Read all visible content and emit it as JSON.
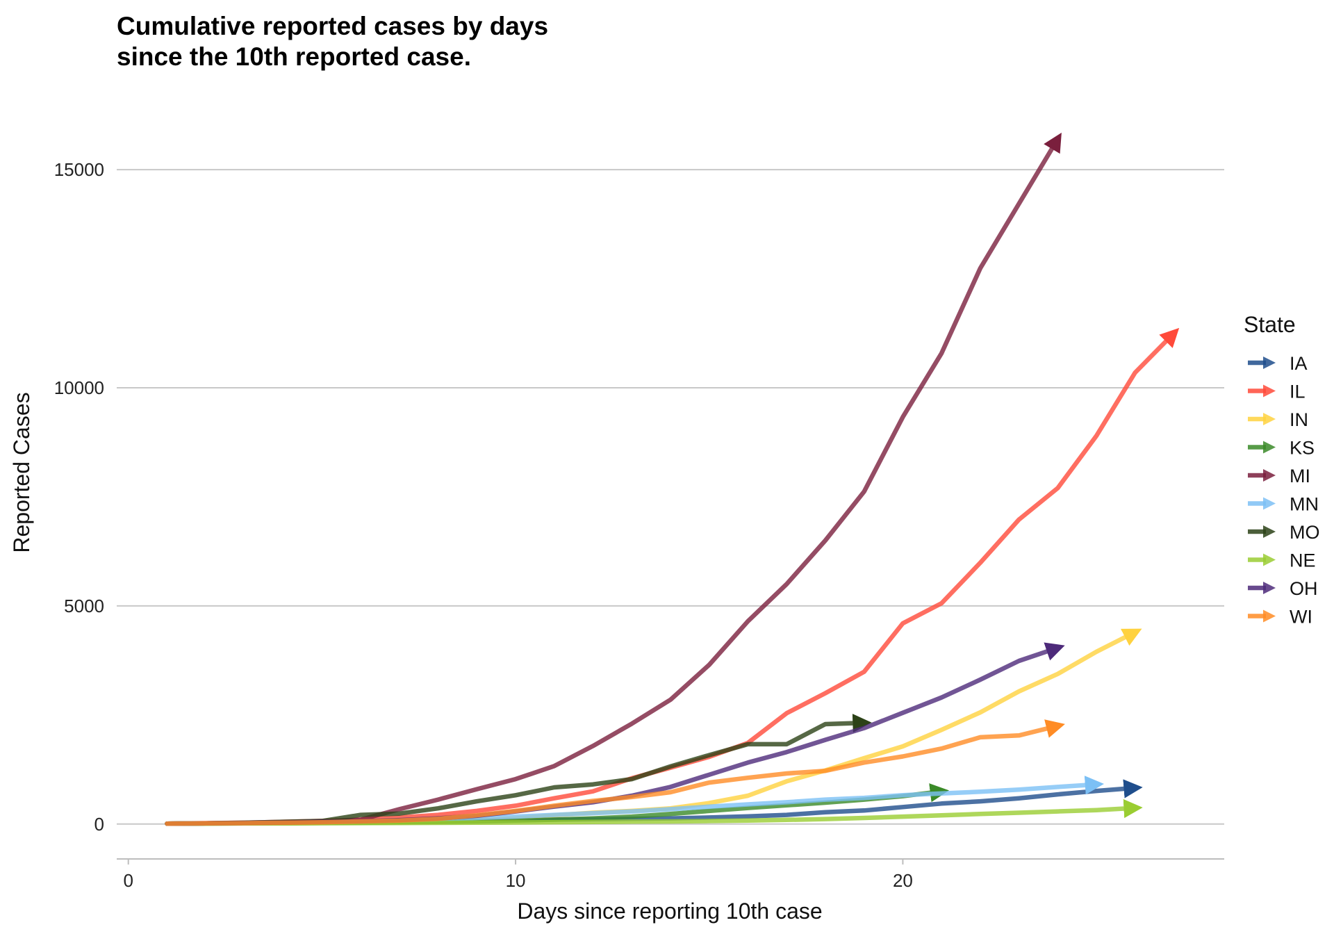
{
  "chart_data": {
    "type": "line",
    "title_lines": [
      "Cumulative reported cases by days",
      "since the 10th reported case."
    ],
    "xlabel": "Days since reporting 10th case",
    "ylabel": "Reported Cases",
    "xlim": [
      -0.3,
      28.3
    ],
    "ylim": [
      -800,
      16500
    ],
    "xticks": [
      0,
      10,
      20
    ],
    "yticks": [
      0,
      5000,
      10000,
      15000
    ],
    "grid": "horizontal",
    "legend_title": "State",
    "legend_position": "right",
    "series": [
      {
        "name": "IA",
        "color": "#1f4e8c",
        "points": [
          [
            1,
            10
          ],
          [
            2,
            15
          ],
          [
            3,
            20
          ],
          [
            4,
            25
          ],
          [
            5,
            30
          ],
          [
            6,
            38
          ],
          [
            7,
            45
          ],
          [
            8,
            55
          ],
          [
            9,
            70
          ],
          [
            10,
            85
          ],
          [
            11,
            100
          ],
          [
            12,
            110
          ],
          [
            13,
            120
          ],
          [
            14,
            130
          ],
          [
            15,
            150
          ],
          [
            16,
            175
          ],
          [
            17,
            210
          ],
          [
            18,
            270
          ],
          [
            19,
            310
          ],
          [
            20,
            390
          ],
          [
            21,
            470
          ],
          [
            22,
            520
          ],
          [
            23,
            590
          ],
          [
            24,
            680
          ],
          [
            25,
            760
          ],
          [
            26,
            830
          ]
        ]
      },
      {
        "name": "IL",
        "color": "#ff4a3a",
        "points": [
          [
            1,
            10
          ],
          [
            2,
            20
          ],
          [
            3,
            30
          ],
          [
            4,
            50
          ],
          [
            5,
            70
          ],
          [
            6,
            100
          ],
          [
            7,
            150
          ],
          [
            8,
            210
          ],
          [
            9,
            300
          ],
          [
            10,
            420
          ],
          [
            11,
            590
          ],
          [
            12,
            750
          ],
          [
            13,
            1050
          ],
          [
            14,
            1290
          ],
          [
            15,
            1540
          ],
          [
            16,
            1860
          ],
          [
            17,
            2540
          ],
          [
            18,
            3000
          ],
          [
            19,
            3490
          ],
          [
            20,
            4600
          ],
          [
            21,
            5060
          ],
          [
            22,
            5990
          ],
          [
            23,
            6980
          ],
          [
            24,
            7700
          ],
          [
            25,
            8900
          ],
          [
            26,
            10350
          ],
          [
            27,
            11250
          ]
        ]
      },
      {
        "name": "IN",
        "color": "#ffd23f",
        "points": [
          [
            1,
            10
          ],
          [
            2,
            12
          ],
          [
            3,
            15
          ],
          [
            4,
            18
          ],
          [
            5,
            25
          ],
          [
            6,
            30
          ],
          [
            7,
            40
          ],
          [
            8,
            55
          ],
          [
            9,
            80
          ],
          [
            10,
            130
          ],
          [
            11,
            200
          ],
          [
            12,
            260
          ],
          [
            13,
            300
          ],
          [
            14,
            360
          ],
          [
            15,
            480
          ],
          [
            16,
            650
          ],
          [
            17,
            980
          ],
          [
            18,
            1230
          ],
          [
            19,
            1510
          ],
          [
            20,
            1780
          ],
          [
            21,
            2160
          ],
          [
            22,
            2560
          ],
          [
            23,
            3040
          ],
          [
            24,
            3440
          ],
          [
            25,
            3950
          ],
          [
            26,
            4400
          ]
        ]
      },
      {
        "name": "KS",
        "color": "#3a8a28",
        "points": [
          [
            1,
            10
          ],
          [
            2,
            12
          ],
          [
            3,
            15
          ],
          [
            4,
            20
          ],
          [
            5,
            25
          ],
          [
            6,
            30
          ],
          [
            7,
            40
          ],
          [
            8,
            50
          ],
          [
            9,
            65
          ],
          [
            10,
            80
          ],
          [
            11,
            100
          ],
          [
            12,
            130
          ],
          [
            13,
            170
          ],
          [
            14,
            230
          ],
          [
            15,
            300
          ],
          [
            16,
            370
          ],
          [
            17,
            430
          ],
          [
            18,
            490
          ],
          [
            19,
            560
          ],
          [
            20,
            640
          ],
          [
            21,
            750
          ]
        ]
      },
      {
        "name": "MI",
        "color": "#7a1f3d",
        "points": [
          [
            1,
            10
          ],
          [
            2,
            15
          ],
          [
            3,
            25
          ],
          [
            4,
            40
          ],
          [
            5,
            60
          ],
          [
            6,
            100
          ],
          [
            7,
            340
          ],
          [
            8,
            560
          ],
          [
            9,
            800
          ],
          [
            10,
            1030
          ],
          [
            11,
            1330
          ],
          [
            12,
            1790
          ],
          [
            13,
            2300
          ],
          [
            14,
            2850
          ],
          [
            15,
            3650
          ],
          [
            16,
            4650
          ],
          [
            17,
            5500
          ],
          [
            18,
            6500
          ],
          [
            19,
            7620
          ],
          [
            20,
            9330
          ],
          [
            21,
            10790
          ],
          [
            22,
            12740
          ],
          [
            23,
            14220
          ],
          [
            24,
            15700
          ]
        ]
      },
      {
        "name": "MN",
        "color": "#7cc0f5",
        "points": [
          [
            1,
            10
          ],
          [
            2,
            15
          ],
          [
            3,
            20
          ],
          [
            4,
            30
          ],
          [
            5,
            40
          ],
          [
            6,
            55
          ],
          [
            7,
            80
          ],
          [
            8,
            110
          ],
          [
            9,
            140
          ],
          [
            10,
            170
          ],
          [
            11,
            210
          ],
          [
            12,
            250
          ],
          [
            13,
            290
          ],
          [
            14,
            340
          ],
          [
            15,
            400
          ],
          [
            16,
            450
          ],
          [
            17,
            500
          ],
          [
            18,
            560
          ],
          [
            19,
            600
          ],
          [
            20,
            660
          ],
          [
            21,
            700
          ],
          [
            22,
            740
          ],
          [
            23,
            790
          ],
          [
            24,
            850
          ],
          [
            25,
            910
          ]
        ]
      },
      {
        "name": "MO",
        "color": "#2c4217",
        "points": [
          [
            1,
            10
          ],
          [
            2,
            15
          ],
          [
            3,
            30
          ],
          [
            4,
            50
          ],
          [
            5,
            70
          ],
          [
            6,
            210
          ],
          [
            7,
            240
          ],
          [
            8,
            360
          ],
          [
            9,
            520
          ],
          [
            10,
            660
          ],
          [
            11,
            840
          ],
          [
            12,
            910
          ],
          [
            13,
            1030
          ],
          [
            14,
            1320
          ],
          [
            15,
            1580
          ],
          [
            16,
            1830
          ],
          [
            17,
            1830
          ],
          [
            18,
            2290
          ],
          [
            19,
            2320
          ]
        ]
      },
      {
        "name": "NE",
        "color": "#9acd32",
        "points": [
          [
            1,
            10
          ],
          [
            2,
            12
          ],
          [
            3,
            15
          ],
          [
            4,
            18
          ],
          [
            5,
            20
          ],
          [
            6,
            22
          ],
          [
            7,
            25
          ],
          [
            8,
            28
          ],
          [
            9,
            32
          ],
          [
            10,
            37
          ],
          [
            11,
            42
          ],
          [
            12,
            48
          ],
          [
            13,
            55
          ],
          [
            14,
            60
          ],
          [
            15,
            70
          ],
          [
            16,
            80
          ],
          [
            17,
            95
          ],
          [
            18,
            115
          ],
          [
            19,
            140
          ],
          [
            20,
            170
          ],
          [
            21,
            200
          ],
          [
            22,
            230
          ],
          [
            23,
            260
          ],
          [
            24,
            290
          ],
          [
            25,
            320
          ],
          [
            26,
            370
          ]
        ]
      },
      {
        "name": "OH",
        "color": "#4d2a7a",
        "points": [
          [
            1,
            10
          ],
          [
            2,
            15
          ],
          [
            3,
            25
          ],
          [
            4,
            35
          ],
          [
            5,
            50
          ],
          [
            6,
            65
          ],
          [
            7,
            90
          ],
          [
            8,
            130
          ],
          [
            9,
            190
          ],
          [
            10,
            290
          ],
          [
            11,
            400
          ],
          [
            12,
            500
          ],
          [
            13,
            650
          ],
          [
            14,
            850
          ],
          [
            15,
            1130
          ],
          [
            16,
            1410
          ],
          [
            17,
            1650
          ],
          [
            18,
            1930
          ],
          [
            19,
            2200
          ],
          [
            20,
            2550
          ],
          [
            21,
            2900
          ],
          [
            22,
            3310
          ],
          [
            23,
            3740
          ],
          [
            24,
            4040
          ]
        ]
      },
      {
        "name": "WI",
        "color": "#ff8c25",
        "points": [
          [
            1,
            10
          ],
          [
            2,
            15
          ],
          [
            3,
            20
          ],
          [
            4,
            30
          ],
          [
            5,
            40
          ],
          [
            6,
            60
          ],
          [
            7,
            80
          ],
          [
            8,
            120
          ],
          [
            9,
            200
          ],
          [
            10,
            300
          ],
          [
            11,
            420
          ],
          [
            12,
            530
          ],
          [
            13,
            620
          ],
          [
            14,
            730
          ],
          [
            15,
            950
          ],
          [
            16,
            1060
          ],
          [
            17,
            1160
          ],
          [
            18,
            1220
          ],
          [
            19,
            1410
          ],
          [
            20,
            1550
          ],
          [
            21,
            1730
          ],
          [
            22,
            1990
          ],
          [
            23,
            2030
          ],
          [
            24,
            2250
          ]
        ]
      }
    ]
  }
}
